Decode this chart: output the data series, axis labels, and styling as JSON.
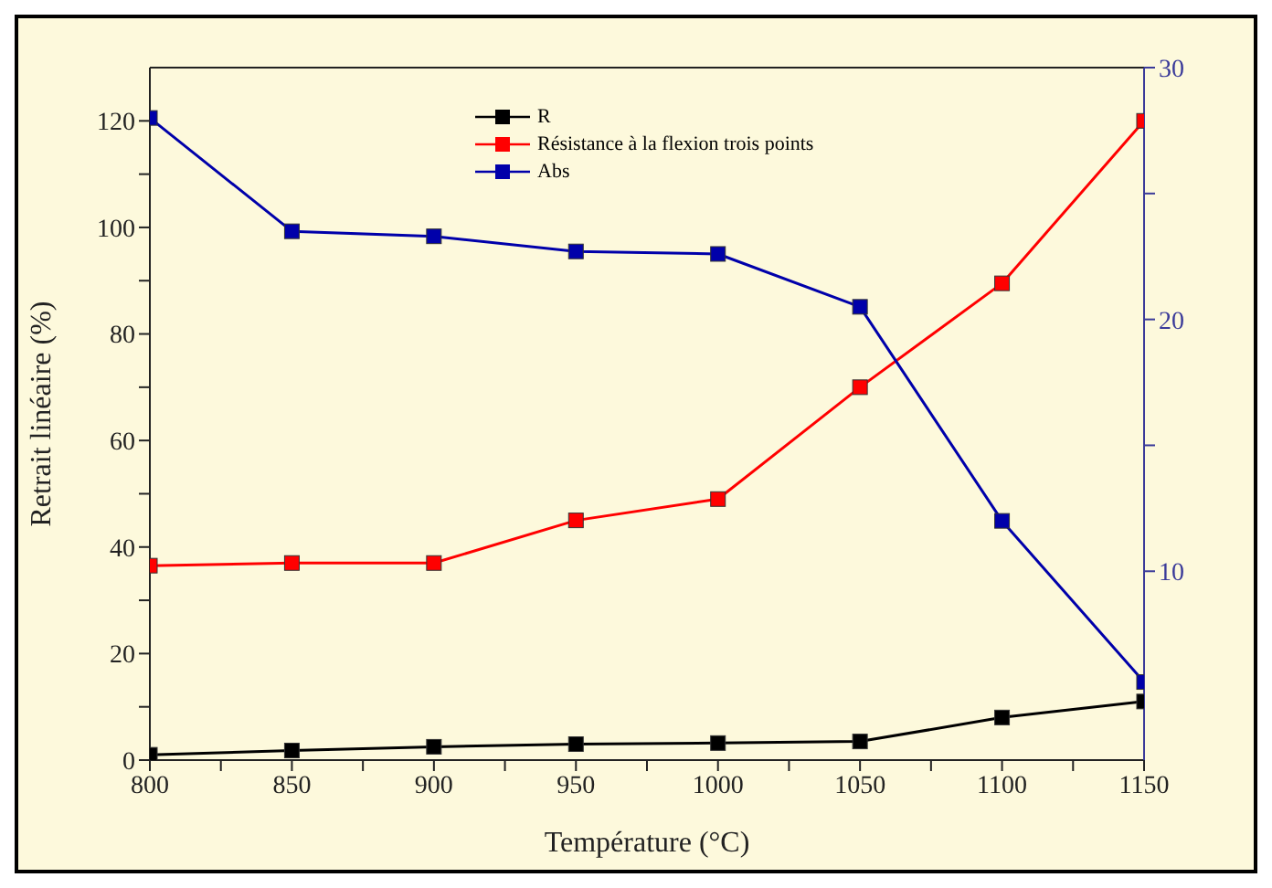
{
  "chart_data": {
    "type": "line",
    "xlabel": "Température (°C)",
    "ylabel": "Retrait linéaire (%)",
    "x": [
      800,
      850,
      900,
      950,
      1000,
      1050,
      1100,
      1150
    ],
    "xlim": [
      800,
      1150
    ],
    "xticks": [
      800,
      {
        "value": 825,
        "label": null
      },
      850,
      {
        "value": 875,
        "label": null
      },
      900,
      {
        "value": 925,
        "label": null
      },
      950,
      {
        "value": 975,
        "label": null
      },
      1000,
      {
        "value": 1025,
        "label": null
      },
      1050,
      {
        "value": 1075,
        "label": null
      },
      1100,
      {
        "value": 1125,
        "label": null
      },
      1150
    ],
    "ylim": [
      0,
      130
    ],
    "yticks": [
      0,
      {
        "value": 10,
        "label": null
      },
      20,
      {
        "value": 30,
        "label": null
      },
      40,
      {
        "value": 50,
        "label": null
      },
      60,
      {
        "value": 70,
        "label": null
      },
      80,
      {
        "value": 90,
        "label": null
      },
      100,
      {
        "value": 110,
        "label": null
      },
      120
    ],
    "y2lim": [
      2.5,
      30
    ],
    "y2ticks": [
      10,
      {
        "value": 15,
        "label": null
      },
      20,
      {
        "value": 25,
        "label": null
      },
      30
    ],
    "marker": "square",
    "legend": "top",
    "series": [
      {
        "name": "R",
        "color": "#000000",
        "values": [
          1,
          1.8,
          2.5,
          3,
          3.2,
          3.5,
          8,
          11
        ]
      },
      {
        "name": "Résistance à la flexion trois points",
        "color": "#ff0000",
        "values": [
          36.5,
          37,
          37,
          45,
          49,
          70,
          89.5,
          120
        ]
      },
      {
        "name": "Abs",
        "color": "#0000aa",
        "axis": "y2",
        "values": [
          28,
          23.5,
          23.3,
          22.7,
          22.6,
          20.5,
          12,
          5.6
        ]
      }
    ]
  }
}
